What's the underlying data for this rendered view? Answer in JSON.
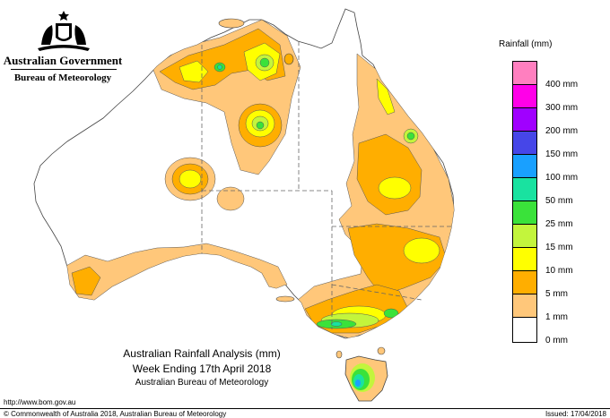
{
  "header": {
    "government": "Australian Government",
    "bureau": "Bureau of Meteorology"
  },
  "legend": {
    "title": "Rainfall (mm)",
    "items": [
      {
        "label": "400 mm",
        "color": "#ff7fbf"
      },
      {
        "label": "300 mm",
        "color": "#ff00e8"
      },
      {
        "label": "200 mm",
        "color": "#a000ff"
      },
      {
        "label": "150 mm",
        "color": "#4646e8"
      },
      {
        "label": "100 mm",
        "color": "#19a0ff"
      },
      {
        "label": "50 mm",
        "color": "#19e2a0"
      },
      {
        "label": "25 mm",
        "color": "#3ae23a"
      },
      {
        "label": "15 mm",
        "color": "#c3f53c"
      },
      {
        "label": "10 mm",
        "color": "#ffff00"
      },
      {
        "label": "5 mm",
        "color": "#ffae00"
      },
      {
        "label": "1 mm",
        "color": "#ffc77a"
      },
      {
        "label": "0 mm",
        "color": "#ffffff"
      }
    ]
  },
  "caption": {
    "line1": "Australian Rainfall Analysis (mm)",
    "line2": "Week Ending 17th April 2018",
    "line3": "Australian Bureau of Meteorology"
  },
  "footer": {
    "url": "http://www.bom.gov.au",
    "copyright": "© Commonwealth of Australia 2018, Australian Bureau of Meteorology",
    "issued": "Issued: 17/04/2018"
  }
}
